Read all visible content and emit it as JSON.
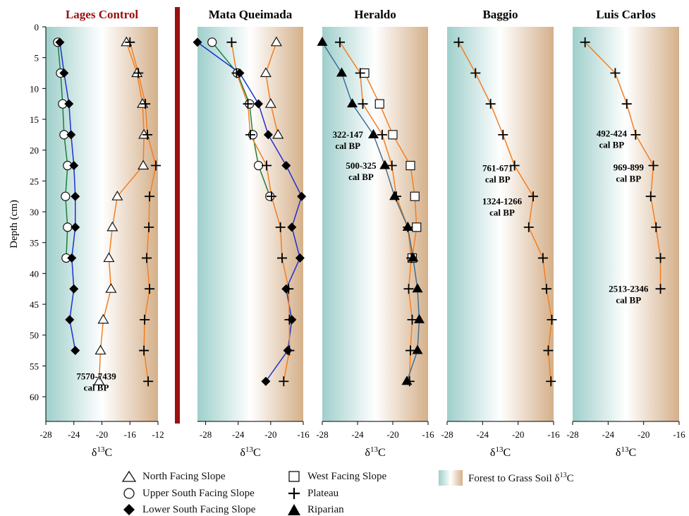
{
  "colors": {
    "orange": "#f57e20",
    "green": "#1e7f3a",
    "blue": "#1f2fd0",
    "steel": "#3f6e94",
    "divider": "#9b0f0f",
    "gradient_left": "#9fcfcb",
    "gradient_right": "#d4b08a"
  },
  "chart_data": [
    {
      "type": "line",
      "title": "Lages Control",
      "title_color": "#9b0f0f",
      "xlabel": "δ13C",
      "ylabel": "Depth (cm)",
      "xlim": [
        -28,
        -12
      ],
      "ylim": [
        0,
        64
      ],
      "y_inverted": true,
      "xticks": [
        "-28",
        "-24",
        "-20",
        "-16",
        "-12"
      ],
      "yticks": [
        "0",
        "5",
        "10",
        "15",
        "20",
        "25",
        "30",
        "35",
        "40",
        "45",
        "50",
        "55",
        "60"
      ],
      "series": [
        {
          "name": "North Facing Slope",
          "marker": "triangle-open",
          "line_color": "#f57e20",
          "x": [
            -16.5,
            -15.0,
            -14.2,
            -14.0,
            -14.1,
            -17.8,
            -18.5,
            -19.0,
            -18.7,
            -19.8,
            -20.2,
            -20.4
          ],
          "y": [
            2.5,
            7.5,
            12.5,
            17.5,
            22.5,
            27.5,
            32.5,
            37.5,
            42.5,
            47.5,
            52.5,
            57.5
          ]
        },
        {
          "name": "Upper South Facing Slope",
          "marker": "circle-open",
          "line_color": "#1e7f3a",
          "x": [
            -26.3,
            -25.9,
            -25.6,
            -25.4,
            -24.9,
            -25.2,
            -24.9,
            -25.1
          ],
          "y": [
            2.5,
            7.5,
            12.5,
            17.5,
            22.5,
            27.5,
            32.5,
            37.5
          ]
        },
        {
          "name": "Lower South Facing Slope",
          "marker": "diamond",
          "line_color": "#1f2fd0",
          "x": [
            -26.0,
            -25.4,
            -24.7,
            -24.4,
            -24.0,
            -23.8,
            -23.8,
            -24.3,
            -24.0,
            -24.6,
            -23.8
          ],
          "y": [
            2.5,
            7.5,
            12.5,
            17.5,
            22.5,
            27.5,
            32.5,
            37.5,
            42.5,
            47.5,
            52.5
          ]
        },
        {
          "name": "Plateau",
          "marker": "plus",
          "line_color": "#f57e20",
          "x": [
            -16.0,
            -14.8,
            -13.8,
            -13.5,
            -12.3,
            -13.2,
            -13.3,
            -13.6,
            -13.2,
            -13.9,
            -14.0,
            -13.4
          ],
          "y": [
            2.5,
            7.5,
            12.5,
            17.5,
            22.5,
            27.5,
            32.5,
            37.5,
            42.5,
            47.5,
            52.5,
            57.5
          ]
        }
      ],
      "annotations": [
        {
          "lines": [
            "7570-7439",
            "cal BP"
          ],
          "x": -20.8,
          "y": 57.2
        }
      ]
    },
    {
      "type": "line",
      "title": "Mata Queimada",
      "xlabel": "δ13C",
      "xlim": [
        -29,
        -16
      ],
      "ylim": [
        0,
        64
      ],
      "y_inverted": true,
      "xticks": [
        "-28",
        "-24",
        "-20",
        "-16"
      ],
      "series": [
        {
          "name": "North Facing Slope",
          "marker": "triangle-open",
          "line_color": "#f57e20",
          "x": [
            -19.3,
            -20.6,
            -20.0,
            -19.1
          ],
          "y": [
            2.5,
            7.5,
            12.5,
            17.5
          ]
        },
        {
          "name": "Upper South Facing Slope",
          "marker": "circle-open",
          "line_color": "#1e7f3a",
          "x": [
            -27.2,
            -24.1,
            -22.6,
            -22.2,
            -21.5,
            -20.1
          ],
          "y": [
            2.5,
            7.5,
            12.5,
            17.5,
            22.5,
            27.5
          ]
        },
        {
          "name": "Lower South Facing Slope",
          "marker": "diamond",
          "line_color": "#1f2fd0",
          "x": [
            -29.0,
            -23.8,
            -21.5,
            -20.3,
            -18.1,
            -16.2,
            -17.4,
            -16.4,
            -18.1,
            -17.4,
            -17.9,
            -20.6
          ],
          "y": [
            2.5,
            7.5,
            12.5,
            17.5,
            22.5,
            27.5,
            32.5,
            37.5,
            42.5,
            47.5,
            52.5,
            57.5
          ]
        },
        {
          "name": "Plateau",
          "marker": "plus",
          "line_color": "#f57e20",
          "x": [
            -24.8,
            -24.2,
            -22.8,
            -22.5,
            -20.5,
            -19.9,
            -18.8,
            -18.6,
            -17.8,
            -17.7,
            -17.7,
            -18.4
          ],
          "y": [
            2.5,
            7.5,
            12.5,
            17.5,
            22.5,
            27.5,
            32.5,
            37.5,
            42.5,
            47.5,
            52.5,
            57.5
          ]
        }
      ]
    },
    {
      "type": "line",
      "title": "Heraldo",
      "xlabel": "δ13C",
      "xlim": [
        -28,
        -16
      ],
      "ylim": [
        0,
        64
      ],
      "y_inverted": true,
      "xticks": [
        "-28",
        "-24",
        "-20",
        "-16"
      ],
      "series": [
        {
          "name": "West Facing Slope",
          "marker": "square-open",
          "line_color": "#f57e20",
          "x": [
            -23.2,
            -21.5,
            -20.0,
            -18.0,
            -17.5,
            -17.3,
            -17.8
          ],
          "y": [
            7.5,
            12.5,
            17.5,
            22.5,
            27.5,
            32.5,
            37.5
          ]
        },
        {
          "name": "Plateau",
          "marker": "plus",
          "line_color": "#f57e20",
          "x": [
            -26.0,
            -23.7,
            -23.4,
            -21.2,
            -20.1,
            -19.6,
            -18.3,
            -17.9,
            -18.2,
            -17.8,
            -18.0,
            -18.1
          ],
          "y": [
            2.5,
            7.5,
            12.5,
            17.5,
            22.5,
            27.5,
            32.5,
            37.5,
            42.5,
            47.5,
            52.5,
            57.5
          ]
        },
        {
          "name": "Riparian",
          "marker": "triangle",
          "line_color": "#3f6e94",
          "x": [
            -28.0,
            -25.8,
            -24.6,
            -22.2,
            -20.9,
            -19.8,
            -18.3,
            -17.7,
            -17.2,
            -17.0,
            -17.2,
            -18.4
          ],
          "y": [
            2.5,
            7.5,
            12.5,
            17.5,
            22.5,
            27.5,
            32.5,
            37.5,
            42.5,
            47.5,
            52.5,
            57.5
          ]
        }
      ],
      "annotations": [
        {
          "lines": [
            "322-147",
            "cal BP"
          ],
          "x": -25.1,
          "y": 18.0
        },
        {
          "lines": [
            "500-325",
            "cal BP"
          ],
          "x": -23.6,
          "y": 23.0
        }
      ]
    },
    {
      "type": "line",
      "title": "Baggio",
      "xlabel": "δ13C",
      "xlim": [
        -28,
        -16
      ],
      "ylim": [
        0,
        64
      ],
      "y_inverted": true,
      "xticks": [
        "-28",
        "-24",
        "-20",
        "-16"
      ],
      "series": [
        {
          "name": "Plateau",
          "marker": "plus",
          "line_color": "#f57e20",
          "x": [
            -26.7,
            -24.8,
            -23.1,
            -21.7,
            -20.4,
            -18.3,
            -18.8,
            -17.2,
            -16.8,
            -16.2,
            -16.6,
            -16.3
          ],
          "y": [
            2.5,
            7.5,
            12.5,
            17.5,
            22.5,
            27.5,
            32.5,
            37.5,
            42.5,
            47.5,
            52.5,
            57.5
          ]
        }
      ],
      "annotations": [
        {
          "lines": [
            "761-671",
            "cal BP"
          ],
          "x": -22.3,
          "y": 23.4
        },
        {
          "lines": [
            "1324-1266",
            "cal BP"
          ],
          "x": -21.8,
          "y": 28.8
        }
      ]
    },
    {
      "type": "line",
      "title": "Luis Carlos",
      "xlabel": "δ13C",
      "xlim": [
        -28,
        -16
      ],
      "ylim": [
        0,
        64
      ],
      "y_inverted": true,
      "xticks": [
        "-28",
        "-24",
        "-20",
        "-16"
      ],
      "series": [
        {
          "name": "Plateau",
          "marker": "plus",
          "line_color": "#f57e20",
          "x": [
            -26.6,
            -23.2,
            -21.9,
            -20.9,
            -18.9,
            -19.2,
            -18.6,
            -18.1,
            -18.1
          ],
          "y": [
            2.5,
            7.5,
            12.5,
            17.5,
            22.5,
            27.5,
            32.5,
            37.5,
            42.5
          ]
        }
      ],
      "annotations": [
        {
          "lines": [
            "492-424",
            "cal BP"
          ],
          "x": -23.6,
          "y": 17.8
        },
        {
          "lines": [
            "969-899",
            "cal BP"
          ],
          "x": -21.7,
          "y": 23.3
        },
        {
          "lines": [
            "2513-2346",
            "cal BP"
          ],
          "x": -21.7,
          "y": 43.0
        }
      ]
    }
  ],
  "legend": {
    "north": "North Facing Slope",
    "upper": "Upper South Facing Slope",
    "lower": "Lower South Facing Slope",
    "west": "West Facing Slope",
    "plateau": "Plateau",
    "riparian": "Riparian",
    "gradient_prefix": "Forest to Grass Soil δ",
    "gradient_sup": "13",
    "gradient_suffix": "C"
  }
}
